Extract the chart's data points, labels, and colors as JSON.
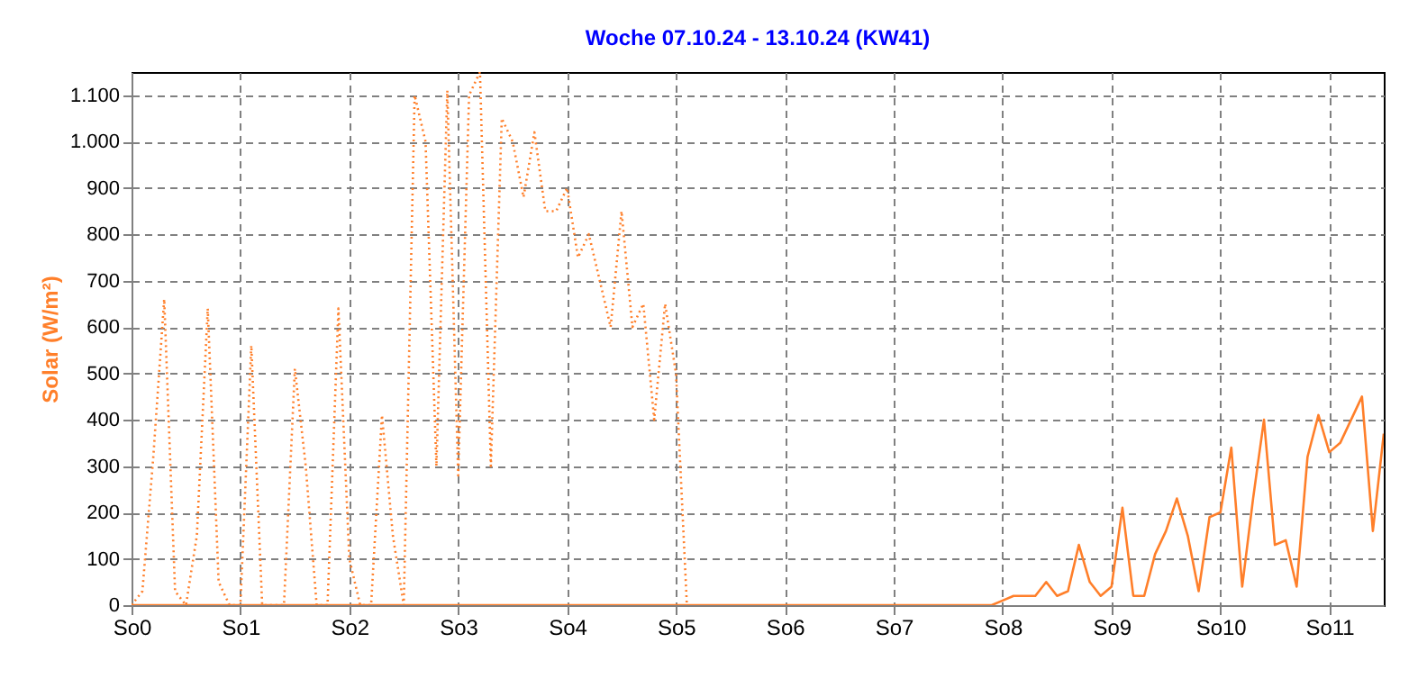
{
  "chart_data": {
    "type": "line",
    "title": "Woche 07.10.24 - 13.10.24 (KW41)",
    "ylabel": "Solar  (W/m²)",
    "categories": [
      "So0",
      null,
      null,
      null,
      null,
      null,
      null,
      null,
      null,
      null,
      "So1",
      null,
      null,
      null,
      null,
      null,
      null,
      null,
      null,
      null,
      "So2",
      null,
      null,
      null,
      null,
      null,
      null,
      null,
      null,
      null,
      "So3",
      null,
      null,
      null,
      null,
      null,
      null,
      null,
      null,
      null,
      "So4",
      null,
      null,
      null,
      null,
      null,
      null,
      null,
      null,
      null,
      "So5",
      null,
      null,
      null,
      null,
      null,
      null,
      null,
      null,
      null,
      "So6",
      null,
      null,
      null,
      null,
      null,
      null,
      null,
      null,
      null,
      "So7",
      null,
      null,
      null,
      null,
      null,
      null,
      null,
      null,
      null,
      "So8",
      null,
      null,
      null,
      null,
      null,
      null,
      null,
      null,
      null,
      "So9",
      null,
      null,
      null,
      null,
      null,
      null,
      null,
      null,
      null,
      "So10",
      null,
      null,
      null,
      null,
      null,
      null,
      null,
      null,
      null,
      "So11",
      null,
      null,
      null,
      null,
      null
    ],
    "ylim": [
      0,
      1150
    ],
    "yticks": [
      0,
      100,
      200,
      300,
      400,
      500,
      600,
      700,
      800,
      900,
      {
        "value": 1000,
        "label": "1.000"
      },
      {
        "value": 1100,
        "label": "1.100"
      }
    ],
    "grid": true,
    "series": [
      {
        "color": "#ff7f2a",
        "line_style": "dotted",
        "values": [
          0,
          30,
          320,
          660,
          30,
          0,
          150,
          640,
          50,
          0,
          0,
          560,
          0,
          0,
          0,
          510,
          300,
          0,
          0,
          640,
          100,
          0,
          0,
          410,
          150,
          0,
          1100,
          1000,
          300,
          1110,
          280,
          1100,
          1150,
          300,
          1050,
          1000,
          880,
          1020,
          850,
          850,
          900,
          750,
          800,
          700,
          600,
          850,
          600,
          650,
          400,
          650,
          500,
          0,
          null,
          null,
          null,
          null,
          null,
          null,
          null,
          null,
          null,
          null,
          null,
          null,
          null,
          null,
          null,
          null,
          null,
          null,
          null,
          null,
          null,
          null,
          null,
          null,
          null,
          null,
          null,
          null,
          null,
          null,
          null,
          null,
          null,
          null,
          null,
          null,
          null,
          null,
          null,
          null,
          null,
          null,
          null,
          null,
          null,
          null,
          null,
          null,
          null,
          null,
          null,
          null,
          null,
          null,
          null,
          null,
          null,
          null,
          null,
          null,
          null,
          null,
          null,
          null
        ]
      },
      {
        "color": "#ff7f2a",
        "line_style": "solid",
        "values": [
          0,
          0,
          0,
          0,
          0,
          0,
          0,
          0,
          0,
          0,
          0,
          0,
          0,
          0,
          0,
          0,
          0,
          0,
          0,
          0,
          0,
          0,
          0,
          0,
          0,
          0,
          0,
          0,
          0,
          0,
          0,
          0,
          0,
          0,
          0,
          0,
          0,
          0,
          0,
          0,
          0,
          0,
          0,
          0,
          0,
          0,
          0,
          0,
          0,
          0,
          0,
          0,
          0,
          0,
          0,
          0,
          0,
          0,
          0,
          0,
          0,
          0,
          0,
          0,
          0,
          0,
          0,
          0,
          0,
          0,
          0,
          0,
          0,
          0,
          0,
          0,
          0,
          0,
          0,
          0,
          10,
          20,
          20,
          20,
          50,
          20,
          30,
          130,
          50,
          20,
          40,
          210,
          20,
          20,
          110,
          160,
          230,
          150,
          30,
          190,
          200,
          340,
          40,
          230,
          400,
          130,
          140,
          40,
          320,
          410,
          330,
          350,
          400,
          450,
          160,
          370
        ]
      }
    ]
  }
}
